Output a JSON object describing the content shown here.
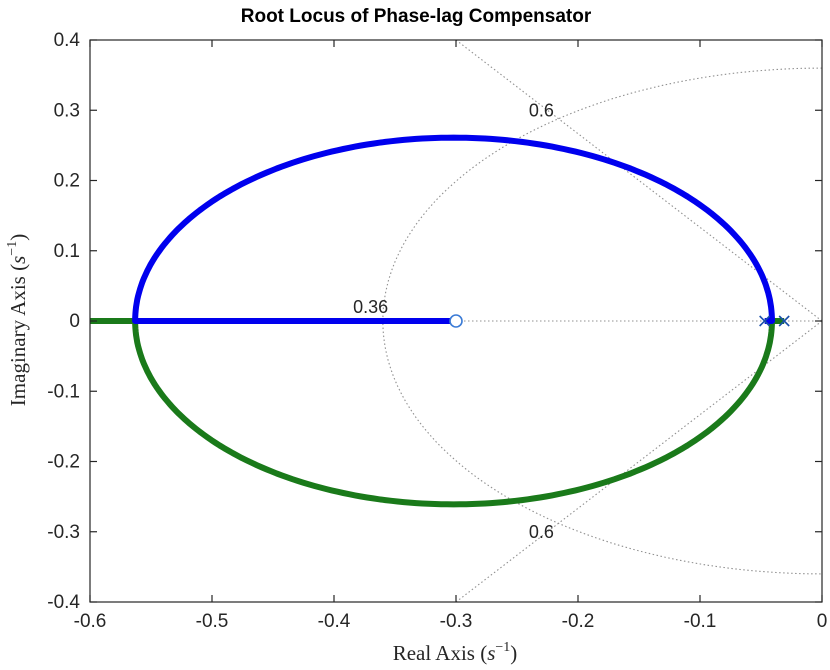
{
  "chart_data": {
    "type": "line",
    "title": "Root Locus of Phase-lag Compensator",
    "xlabel": "Real Axis",
    "ylabel": "Imaginary Axis",
    "unit_base": "s",
    "unit_exp": "−1",
    "xlim": [
      -0.6,
      0
    ],
    "ylim": [
      -0.4,
      0.4
    ],
    "xticks": [
      -0.6,
      -0.5,
      -0.4,
      -0.3,
      -0.2,
      -0.1,
      0
    ],
    "xtick_labels": [
      "-0.6",
      "-0.5",
      "-0.4",
      "-0.3",
      "-0.2",
      "-0.1",
      "0"
    ],
    "yticks": [
      -0.4,
      -0.3,
      -0.2,
      -0.1,
      0,
      0.1,
      0.2,
      0.3,
      0.4
    ],
    "ytick_labels": [
      "-0.4",
      "-0.3",
      "-0.2",
      "-0.1",
      "0",
      "0.1",
      "0.2",
      "0.3",
      "0.4"
    ],
    "grid": "off",
    "locus": {
      "breakin": -0.563,
      "breakaway": -0.041,
      "circle_center": -0.302,
      "circle_radius": 0.261,
      "zero": -0.3,
      "poles": [
        -0.047,
        -0.031
      ]
    },
    "series": [
      {
        "color": "#0000ee"
      },
      {
        "color": "#1a7a1a"
      }
    ],
    "damping_lines": [
      {
        "zeta": 0.6,
        "wn": 0.36
      }
    ],
    "annotations": [
      {
        "text": "0.6",
        "x": -0.23,
        "y": 0.3
      },
      {
        "text": "0.6",
        "x": -0.23,
        "y": -0.3
      },
      {
        "text": "0.36",
        "x": -0.37,
        "y": 0.02
      }
    ],
    "colors": {
      "zero_marker": "#3b7bd6",
      "pole_marker": "#1a4faa",
      "grid_guides": "#909090",
      "axes": "#262626"
    }
  }
}
